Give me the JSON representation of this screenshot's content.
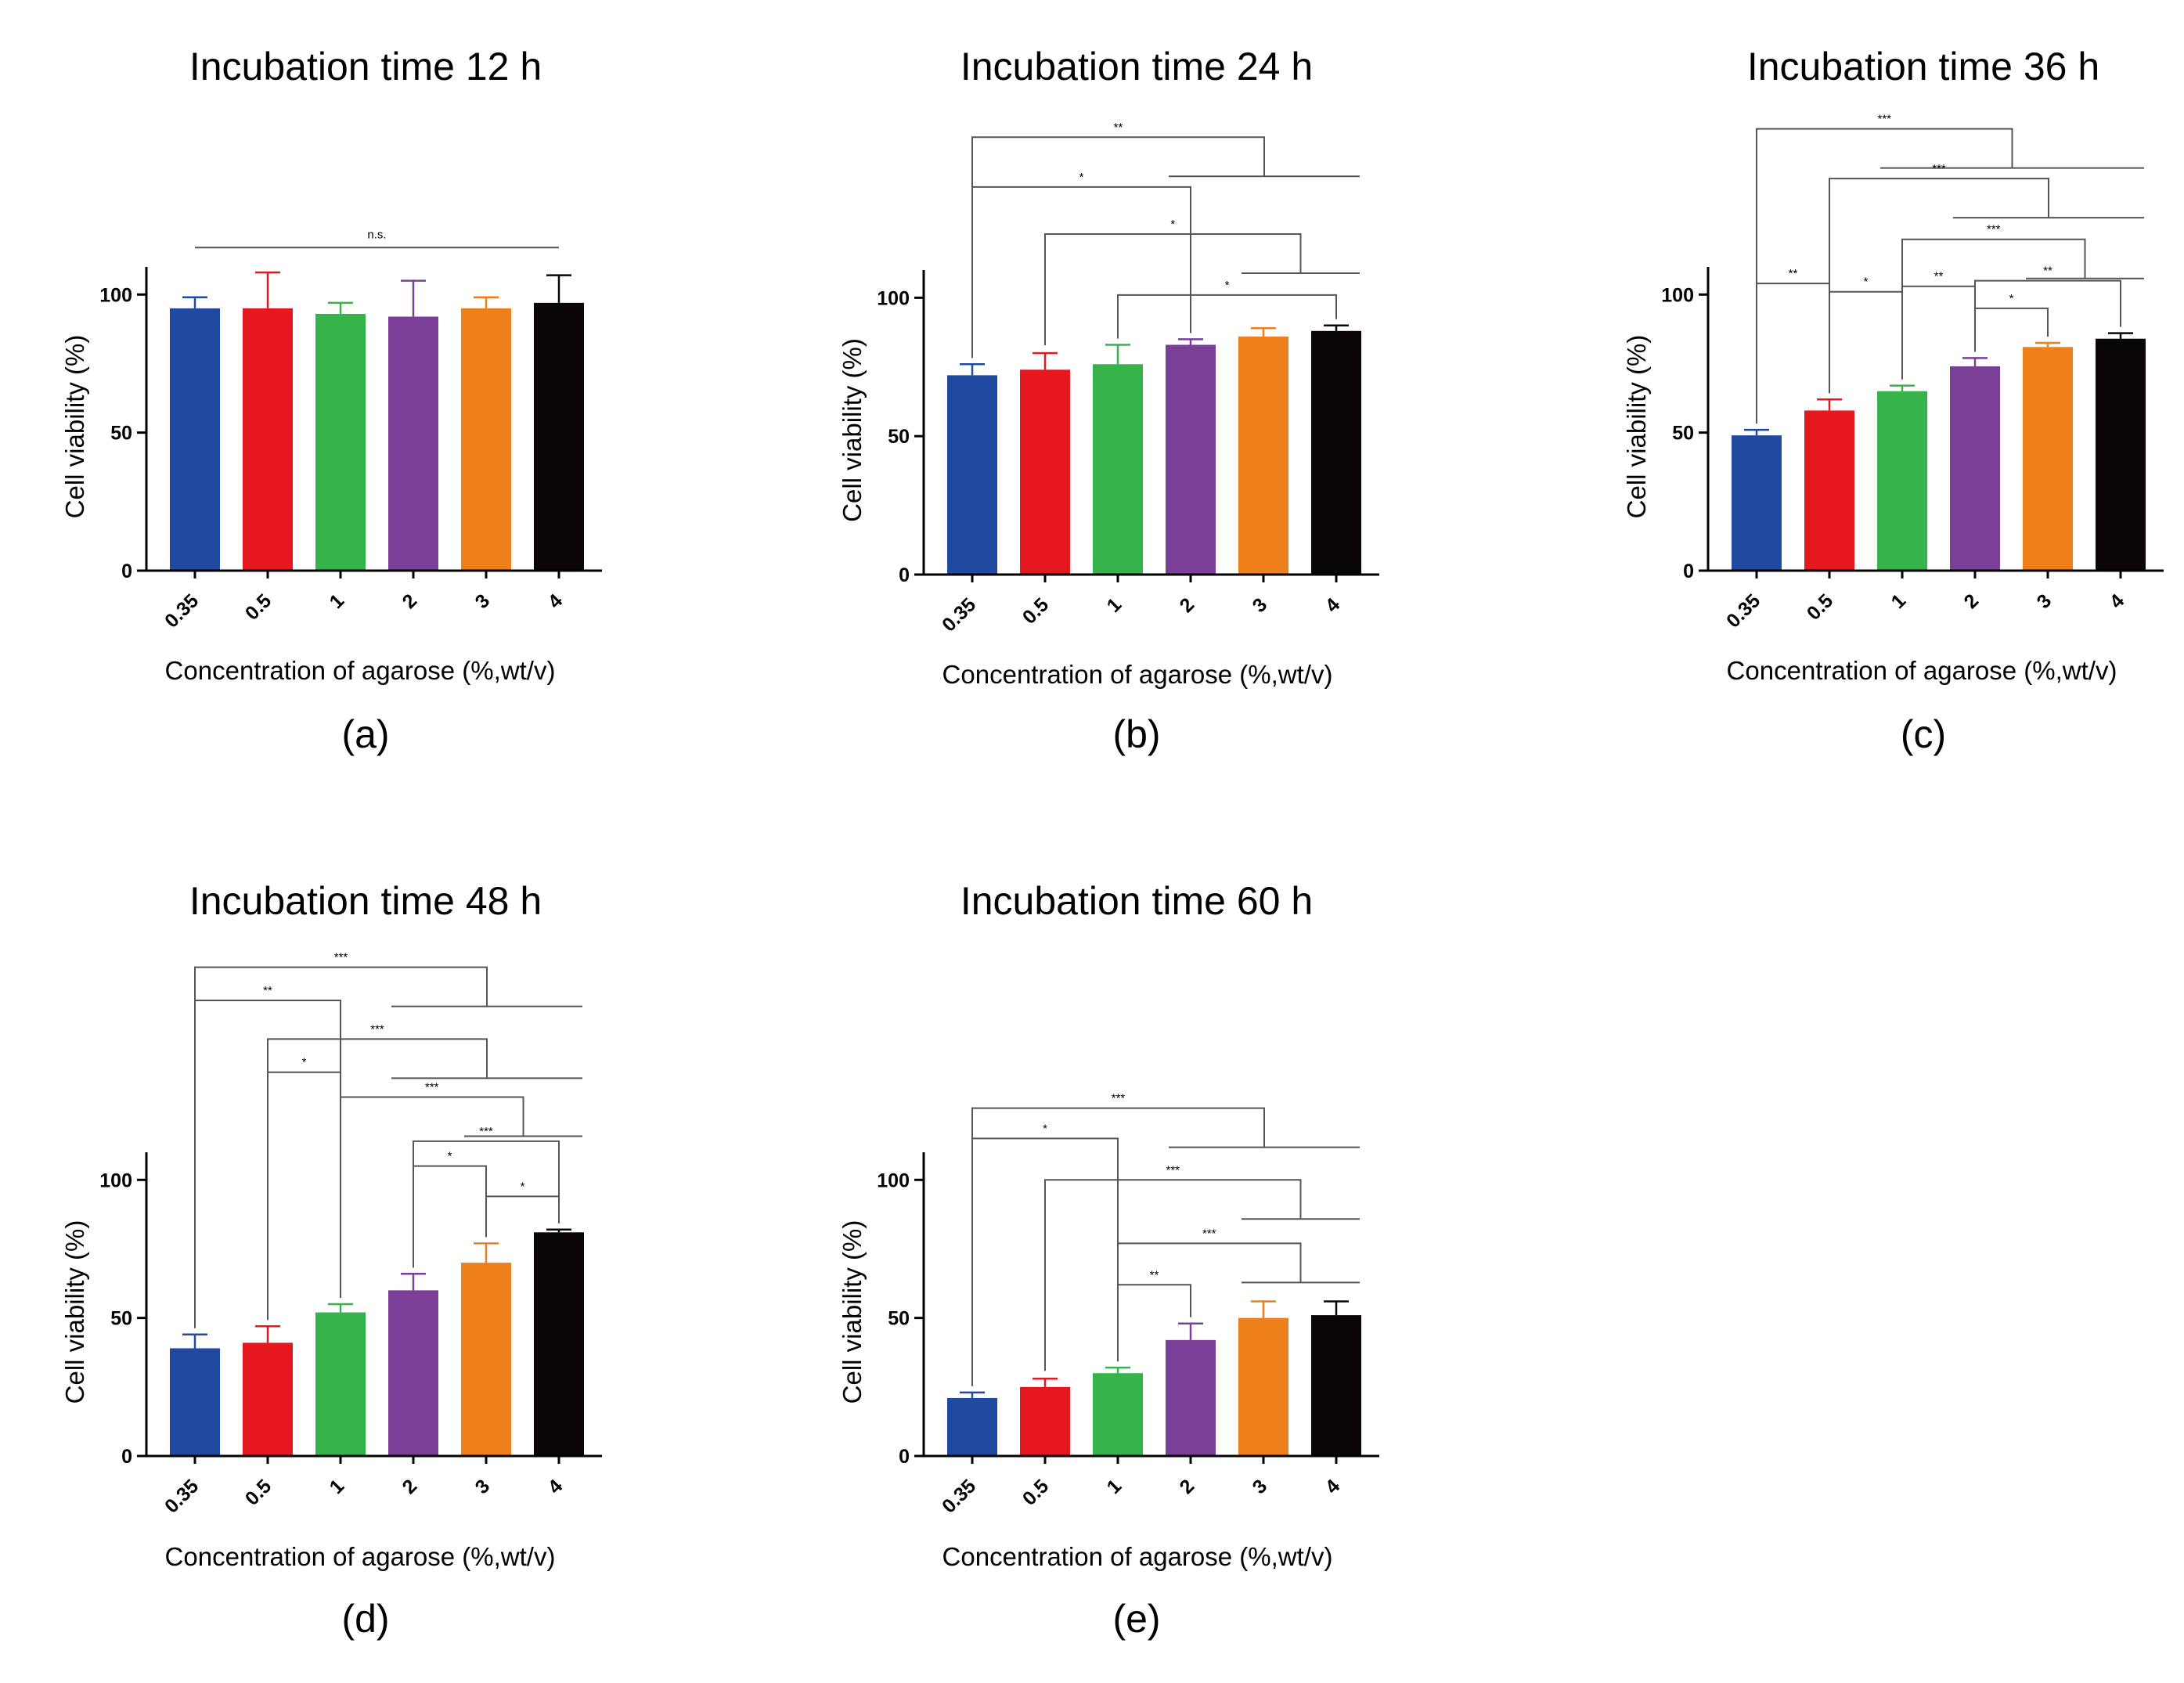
{
  "figure": {
    "colors": [
      "#1f4aa0",
      "#e5171f",
      "#36b34a",
      "#7b3f98",
      "#ef7f1a",
      "#0a0506"
    ],
    "panel_labels": [
      "(a)",
      "(b)",
      "(c)",
      "(d)",
      "(e)"
    ]
  },
  "chart_data": [
    {
      "type": "bar",
      "panel": "(a)",
      "title": "Incubation time 12 h",
      "xlabel": "Concentration of agarose (%,wt/v)",
      "ylabel": "Cell viability (%)",
      "categories": [
        "0.35",
        "0.5",
        "1",
        "2",
        "3",
        "4"
      ],
      "values": [
        95,
        95,
        93,
        92,
        95,
        97
      ],
      "errors": [
        4,
        13,
        4,
        13,
        4,
        10
      ],
      "ylim": [
        0,
        110
      ],
      "yticks": [
        0,
        50,
        100
      ],
      "significance": [
        {
          "from": 0,
          "to": 5,
          "label": "n.s.",
          "y": 117,
          "style": "line"
        }
      ]
    },
    {
      "type": "bar",
      "panel": "(b)",
      "title": "Incubation time 24 h",
      "xlabel": "Concentration of agarose (%,wt/v)",
      "ylabel": "Cell viability (%)",
      "categories": [
        "0.35",
        "0.5",
        "1",
        "2",
        "3",
        "4"
      ],
      "values": [
        72,
        74,
        76,
        83,
        86,
        88
      ],
      "errors": [
        4,
        6,
        7,
        2,
        3,
        2
      ],
      "ylim": [
        0,
        110
      ],
      "yticks": [
        0,
        50,
        100
      ],
      "significance": [
        {
          "from": 0,
          "group": [
            3,
            4,
            5
          ],
          "label": "**",
          "y": 158,
          "style": "group"
        },
        {
          "from": 0,
          "to": 3,
          "label": "*",
          "y": 140,
          "style": "bracket"
        },
        {
          "from": 1,
          "group": [
            4,
            5
          ],
          "label": "*",
          "y": 123,
          "style": "group"
        },
        {
          "from": 2,
          "to": 5,
          "label": "*",
          "y": 101,
          "style": "bracket"
        }
      ]
    },
    {
      "type": "bar",
      "panel": "(c)",
      "title": "Incubation time 36 h",
      "xlabel": "Concentration of agarose (%,wt/v)",
      "ylabel": "Cell viability (%)",
      "categories": [
        "0.35",
        "0.5",
        "1",
        "2",
        "3",
        "4"
      ],
      "values": [
        49,
        58,
        65,
        74,
        81,
        84
      ],
      "errors": [
        2,
        4,
        2,
        3,
        1.5,
        2
      ],
      "ylim": [
        0,
        110
      ],
      "yticks": [
        0,
        50,
        100
      ],
      "significance": [
        {
          "from": 0,
          "group": [
            2,
            3,
            4,
            5
          ],
          "label": "***",
          "y": 160,
          "style": "group"
        },
        {
          "from": 1,
          "group": [
            3,
            4,
            5
          ],
          "label": "***",
          "y": 142,
          "style": "group"
        },
        {
          "from": 2,
          "group": [
            4,
            5
          ],
          "label": "***",
          "y": 120,
          "style": "group"
        },
        {
          "from": 0,
          "to": 1,
          "label": "**",
          "y": 104,
          "style": "bracket"
        },
        {
          "from": 1,
          "to": 2,
          "label": "*",
          "y": 101,
          "style": "bracket"
        },
        {
          "from": 2,
          "to": 3,
          "label": "**",
          "y": 103,
          "style": "bracket"
        },
        {
          "from": 3,
          "to": 5,
          "label": "**",
          "y": 105,
          "style": "bracket"
        },
        {
          "from": 3,
          "to": 4,
          "label": "*",
          "y": 95,
          "style": "bracket"
        }
      ]
    },
    {
      "type": "bar",
      "panel": "(d)",
      "title": "Incubation time 48 h",
      "xlabel": "Concentration of agarose (%,wt/v)",
      "ylabel": "Cell viability (%)",
      "categories": [
        "0.35",
        "0.5",
        "1",
        "2",
        "3",
        "4"
      ],
      "values": [
        39,
        41,
        52,
        60,
        70,
        81
      ],
      "errors": [
        5,
        6,
        3,
        6,
        7,
        1
      ],
      "ylim": [
        0,
        110
      ],
      "yticks": [
        0,
        50,
        100
      ],
      "significance": [
        {
          "from": 0,
          "group": [
            3,
            4,
            5
          ],
          "label": "***",
          "y": 177,
          "style": "group"
        },
        {
          "from": 0,
          "to": 2,
          "label": "**",
          "y": 165,
          "style": "bracket"
        },
        {
          "from": 1,
          "group": [
            3,
            4,
            5
          ],
          "label": "***",
          "y": 151,
          "style": "group"
        },
        {
          "from": 1,
          "to": 2,
          "label": "*",
          "y": 139,
          "style": "bracket"
        },
        {
          "from": 2,
          "group": [
            4,
            5
          ],
          "label": "***",
          "y": 130,
          "style": "group"
        },
        {
          "from": 3,
          "to": 5,
          "label": "***",
          "y": 114,
          "style": "bracket"
        },
        {
          "from": 3,
          "to": 4,
          "label": "*",
          "y": 105,
          "style": "bracket"
        },
        {
          "from": 4,
          "to": 5,
          "label": "*",
          "y": 94,
          "style": "bracket"
        }
      ]
    },
    {
      "type": "bar",
      "panel": "(e)",
      "title": "Incubation time 60 h",
      "xlabel": "Concentration of agarose (%,wt/v)",
      "ylabel": "Cell viability (%)",
      "categories": [
        "0.35",
        "0.5",
        "1",
        "2",
        "3",
        "4"
      ],
      "values": [
        21,
        25,
        30,
        42,
        50,
        51
      ],
      "errors": [
        2,
        3,
        2,
        6,
        6,
        5
      ],
      "ylim": [
        0,
        110
      ],
      "yticks": [
        0,
        50,
        100
      ],
      "significance": [
        {
          "from": 0,
          "group": [
            3,
            4,
            5
          ],
          "label": "***",
          "y": 126,
          "style": "group"
        },
        {
          "from": 0,
          "to": 2,
          "label": "*",
          "y": 115,
          "style": "bracket"
        },
        {
          "from": 1,
          "group": [
            4,
            5
          ],
          "label": "***",
          "y": 100,
          "style": "group"
        },
        {
          "from": 2,
          "group": [
            4,
            5
          ],
          "label": "***",
          "y": 77,
          "style": "group"
        },
        {
          "from": 2,
          "to": 3,
          "label": "**",
          "y": 62,
          "style": "bracket"
        }
      ]
    }
  ]
}
